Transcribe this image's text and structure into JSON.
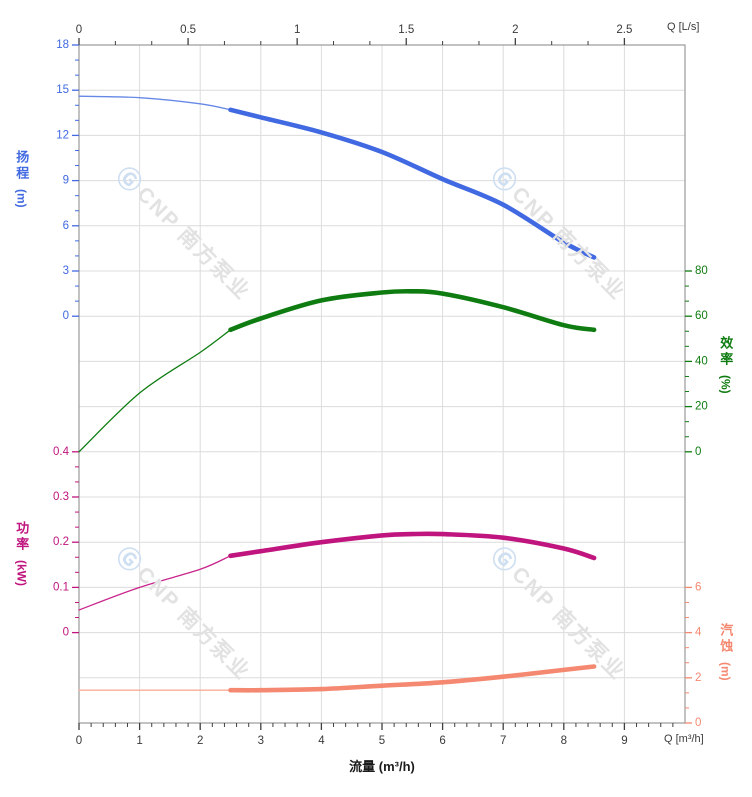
{
  "watermark": {
    "text": "CNP 南方泵业",
    "logo_char": "Ⓖ"
  },
  "corner_labels": {
    "top_right": "Q [L/s]",
    "bottom_right": "Q [m³/h]"
  },
  "bottom_title": "流量 (m³/h)",
  "chart_data": {
    "type": "line",
    "title": "",
    "x_bottom": {
      "axis_label": "Q [m³/h]",
      "unit": "m³/h",
      "min": 0,
      "max": 10,
      "major_ticks": [
        0,
        1,
        2,
        3,
        4,
        5,
        6,
        7,
        8,
        9
      ],
      "minor_divisions": 5,
      "grid": true
    },
    "x_top": {
      "axis_label": "Q [L/s]",
      "unit": "L/s",
      "min": 0,
      "max": 2.78,
      "major_ticks": [
        0,
        0.5,
        1,
        1.5,
        2,
        2.5
      ],
      "minor_divisions": 3,
      "to_bottom_factor": 3.6
    },
    "axes": {
      "head": {
        "title": "扬程",
        "unit": "(m)",
        "side": "left",
        "color": "#4169e1",
        "min": 0,
        "max": 18,
        "row_max": 0,
        "row_min": 6,
        "ticks": [
          18,
          15,
          12,
          9,
          6,
          3,
          0
        ],
        "minor_divisions": 3
      },
      "efficiency": {
        "title": "效率",
        "unit": "(%)",
        "side": "right",
        "color": "#0f7c11",
        "min": 0,
        "max": 80,
        "row_max": 5,
        "row_min": 9,
        "ticks": [
          80,
          60,
          40,
          20,
          0
        ],
        "minor_divisions": 3
      },
      "power": {
        "title": "功率",
        "unit": "(kW)",
        "side": "left",
        "color": "#c0157e",
        "min": 0,
        "max": 0.4,
        "row_max": 9,
        "row_min": 13,
        "ticks": [
          0.4,
          0.3,
          0.2,
          0.1,
          0
        ],
        "minor_divisions": 3
      },
      "npsh": {
        "title": "汽蚀",
        "unit": "(m)",
        "side": "right",
        "color": "#f58870",
        "min": 0,
        "max": 6,
        "row_max": 12,
        "row_min": 15,
        "ticks": [
          6,
          4,
          2,
          0
        ],
        "minor_divisions": 3
      }
    },
    "series": [
      {
        "name": "head-curve",
        "axis": "head",
        "color": "#4169e1",
        "thin_color": "#6688e6",
        "split_x": 2.5,
        "points": [
          [
            0,
            14.6
          ],
          [
            1,
            14.5
          ],
          [
            2,
            14.1
          ],
          [
            2.5,
            13.7
          ],
          [
            3,
            13.2
          ],
          [
            4,
            12.2
          ],
          [
            5,
            10.9
          ],
          [
            6,
            9.1
          ],
          [
            7,
            7.4
          ],
          [
            8,
            4.9
          ],
          [
            8.5,
            3.9
          ]
        ]
      },
      {
        "name": "efficiency-curve",
        "axis": "efficiency",
        "color": "#0f7c11",
        "thin_color": "#0f7c11",
        "split_x": 2.5,
        "points": [
          [
            0,
            0
          ],
          [
            1,
            26
          ],
          [
            2,
            44
          ],
          [
            2.5,
            54
          ],
          [
            3,
            59
          ],
          [
            4,
            67
          ],
          [
            5,
            70.5
          ],
          [
            5.5,
            71
          ],
          [
            6,
            70
          ],
          [
            7,
            64
          ],
          [
            8,
            56
          ],
          [
            8.5,
            54
          ]
        ]
      },
      {
        "name": "power-curve",
        "axis": "power",
        "color": "#c0157e",
        "thin_color": "#c9258c",
        "split_x": 2.5,
        "points": [
          [
            0,
            0.05
          ],
          [
            1,
            0.1
          ],
          [
            2,
            0.14
          ],
          [
            2.5,
            0.17
          ],
          [
            3,
            0.18
          ],
          [
            4,
            0.2
          ],
          [
            5,
            0.215
          ],
          [
            5.5,
            0.218
          ],
          [
            6,
            0.218
          ],
          [
            7,
            0.21
          ],
          [
            8,
            0.186
          ],
          [
            8.5,
            0.165
          ]
        ]
      },
      {
        "name": "npsh-curve",
        "axis": "npsh",
        "color": "#f58870",
        "thin_color": "#f9ab98",
        "split_x": 2.5,
        "points": [
          [
            0,
            1.45
          ],
          [
            1,
            1.45
          ],
          [
            2,
            1.45
          ],
          [
            2.5,
            1.45
          ],
          [
            3,
            1.45
          ],
          [
            4,
            1.5
          ],
          [
            5,
            1.65
          ],
          [
            6,
            1.8
          ],
          [
            7,
            2.05
          ],
          [
            8,
            2.35
          ],
          [
            8.5,
            2.5
          ]
        ]
      }
    ],
    "style": {
      "grid_color": "#dcdcdc",
      "frame_color": "#9a9a9a",
      "tick_color": "#3f3f3f",
      "label_color": "#3a3a3a"
    }
  }
}
